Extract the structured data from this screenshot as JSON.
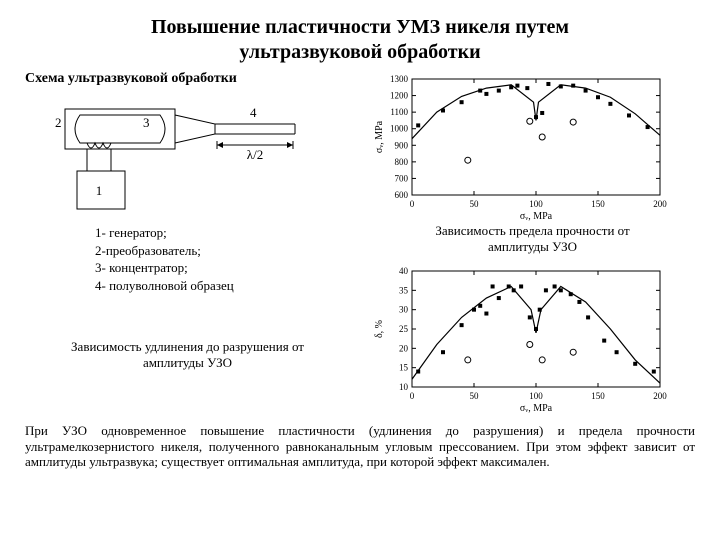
{
  "title_line1": "Повышение пластичности УМЗ никеля путем",
  "title_line2": "ультразвуковой обработки",
  "scheme_label": "Схема ультразвуковой обработки",
  "diagram": {
    "labels": {
      "gen": "1",
      "transducer": "2",
      "conc": "3",
      "sample": "4",
      "lambda": "λ/2"
    }
  },
  "legend": {
    "l1": "1- генератор;",
    "l2": "2-преобразователь;",
    "l3": "3- концентратор;",
    "l4": "4- полуволновой образец"
  },
  "left_caption_l1": "Зависимость удлинения до разрушения от",
  "left_caption_l2": "амплитуды УЗО",
  "chart1": {
    "ylabel": "σᵥ, MPa",
    "xlabel": "σᵥ, MPa",
    "ylim": [
      600,
      1300
    ],
    "ytick_step": 100,
    "xlim": [
      0,
      200
    ],
    "xtick_step": 50,
    "series_filled": [
      [
        5,
        1020
      ],
      [
        25,
        1110
      ],
      [
        40,
        1160
      ],
      [
        55,
        1230
      ],
      [
        60,
        1210
      ],
      [
        70,
        1230
      ],
      [
        80,
        1250
      ],
      [
        85,
        1260
      ],
      [
        93,
        1245
      ],
      [
        100,
        1070
      ],
      [
        105,
        1095
      ],
      [
        110,
        1270
      ],
      [
        120,
        1255
      ],
      [
        130,
        1260
      ],
      [
        140,
        1230
      ],
      [
        150,
        1190
      ],
      [
        160,
        1150
      ],
      [
        175,
        1080
      ],
      [
        190,
        1010
      ]
    ],
    "series_open": [
      [
        45,
        810
      ],
      [
        95,
        1045
      ],
      [
        105,
        950
      ],
      [
        130,
        1040
      ]
    ],
    "curve": [
      [
        0,
        940
      ],
      [
        20,
        1100
      ],
      [
        40,
        1195
      ],
      [
        60,
        1245
      ],
      [
        80,
        1265
      ],
      [
        98,
        1160
      ],
      [
        100,
        1050
      ],
      [
        102,
        1160
      ],
      [
        120,
        1265
      ],
      [
        140,
        1245
      ],
      [
        160,
        1190
      ],
      [
        180,
        1090
      ],
      [
        200,
        960
      ]
    ],
    "marker_filled_color": "#000000",
    "marker_open_color": "#000000",
    "line_color": "#000000",
    "bg": "#ffffff"
  },
  "caption1_l1": "Зависимость предела прочности от",
  "caption1_l2": "амплитуды УЗО",
  "chart2": {
    "ylabel": "δ, %",
    "xlabel": "σᵥ, MPa",
    "ylim": [
      10,
      40
    ],
    "ytick_step": 5,
    "xlim": [
      0,
      200
    ],
    "xtick_step": 50,
    "series_filled": [
      [
        5,
        14
      ],
      [
        25,
        19
      ],
      [
        40,
        26
      ],
      [
        50,
        30
      ],
      [
        55,
        31
      ],
      [
        60,
        29
      ],
      [
        65,
        36
      ],
      [
        70,
        33
      ],
      [
        78,
        36
      ],
      [
        82,
        35
      ],
      [
        88,
        36
      ],
      [
        95,
        28
      ],
      [
        100,
        25
      ],
      [
        103,
        30
      ],
      [
        108,
        35
      ],
      [
        115,
        36
      ],
      [
        120,
        35
      ],
      [
        128,
        34
      ],
      [
        135,
        32
      ],
      [
        142,
        28
      ],
      [
        155,
        22
      ],
      [
        165,
        19
      ],
      [
        180,
        16
      ],
      [
        195,
        14
      ]
    ],
    "series_open": [
      [
        45,
        17
      ],
      [
        95,
        21
      ],
      [
        105,
        17
      ],
      [
        130,
        19
      ]
    ],
    "curve": [
      [
        0,
        12
      ],
      [
        20,
        21
      ],
      [
        40,
        28
      ],
      [
        60,
        33
      ],
      [
        80,
        36
      ],
      [
        96,
        30
      ],
      [
        100,
        24
      ],
      [
        104,
        30
      ],
      [
        120,
        36
      ],
      [
        140,
        32
      ],
      [
        160,
        25
      ],
      [
        180,
        17
      ],
      [
        200,
        11
      ]
    ],
    "marker_filled_color": "#000000",
    "marker_open_color": "#000000",
    "line_color": "#000000",
    "bg": "#ffffff"
  },
  "bottom_text": "При УЗО одновременное повышение пластичности (удлинения до разрушения) и предела прочности ультрамелкозернистого никеля, полученного равноканальным угловым прессованием. При этом эффект зависит от амплитуды ультразвука; существует оптимальная амплитуда, при которой эффект максимален."
}
